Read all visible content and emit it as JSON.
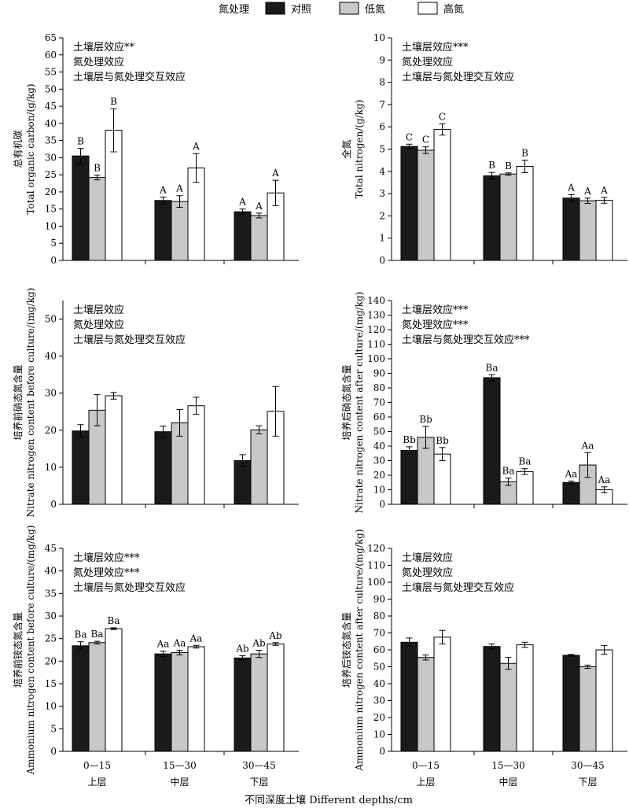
{
  "legend": {
    "title": "氮处理",
    "items": [
      {
        "label": "对照",
        "color": "#1a1a1a"
      },
      {
        "label": "低氮",
        "color": "#c8c8c8"
      },
      {
        "label": "高氮",
        "color": "#ffffff"
      }
    ]
  },
  "x_axis": {
    "depth_labels": [
      "0—15",
      "15—30",
      "30—45"
    ],
    "layer_labels": [
      "上层",
      "中层",
      "下层"
    ],
    "caption": "不同深度土壤 Different depths/cm"
  },
  "chart_data": [
    {
      "type": "bar",
      "ylabel_cn": "总有机碳",
      "ylabel_en": "Total organic carbon/(g/kg)",
      "ylim": [
        0,
        65
      ],
      "ystep": 5,
      "annotations": [
        "土壤层效应**",
        "氮处理效应",
        "土壤层与氮处理交互效应"
      ],
      "categories": [
        "0—15",
        "15—30",
        "30—45"
      ],
      "series": [
        {
          "name": "对照",
          "values": [
            30.5,
            17.5,
            14.2
          ],
          "errors": [
            2.2,
            1.0,
            0.8
          ]
        },
        {
          "name": "低氮",
          "values": [
            24.2,
            17.2,
            13.1
          ],
          "errors": [
            0.7,
            1.7,
            0.7
          ]
        },
        {
          "name": "高氮",
          "values": [
            38.0,
            27.0,
            19.7
          ],
          "errors": [
            6.3,
            4.2,
            3.7
          ]
        }
      ],
      "sig_labels": [
        [
          "B",
          "B",
          "B"
        ],
        [
          "A",
          "A",
          "A"
        ],
        [
          "A",
          "A",
          "A"
        ]
      ]
    },
    {
      "type": "bar",
      "ylabel_cn": "全氮",
      "ylabel_en": "Total nitrogen/(g/kg)",
      "ylim": [
        0,
        10
      ],
      "ystep": 1,
      "annotations": [
        "土壤层效应***",
        "氮处理效应",
        "土壤层与氮处理交互效应"
      ],
      "categories": [
        "0—15",
        "15—30",
        "30—45"
      ],
      "series": [
        {
          "name": "对照",
          "values": [
            5.12,
            3.8,
            2.8
          ],
          "errors": [
            0.1,
            0.15,
            0.15
          ]
        },
        {
          "name": "低氮",
          "values": [
            4.95,
            3.88,
            2.68
          ],
          "errors": [
            0.15,
            0.05,
            0.12
          ]
        },
        {
          "name": "高氮",
          "values": [
            5.88,
            4.22,
            2.7
          ],
          "errors": [
            0.25,
            0.28,
            0.13
          ]
        }
      ],
      "sig_labels": [
        [
          "C",
          "C",
          "C"
        ],
        [
          "B",
          "B",
          "B"
        ],
        [
          "A",
          "A",
          "A"
        ]
      ]
    },
    {
      "type": "bar",
      "ylabel_cn": "培养前硝态氮含量",
      "ylabel_en": "Nitrate nitrogen content before culture/(mg/kg)",
      "ylim": [
        0,
        55
      ],
      "ystep": 10,
      "annotations": [
        "土壤层效应",
        "氮处理效应",
        "土壤层与氮处理交互效应"
      ],
      "categories": [
        "0—15",
        "15—30",
        "30—45"
      ],
      "series": [
        {
          "name": "对照",
          "values": [
            19.8,
            19.6,
            11.8
          ],
          "errors": [
            1.7,
            1.5,
            1.6
          ]
        },
        {
          "name": "低氮",
          "values": [
            25.4,
            22.0,
            20.1
          ],
          "errors": [
            4.2,
            3.6,
            1.1
          ]
        },
        {
          "name": "高氮",
          "values": [
            29.3,
            26.6,
            25.1
          ],
          "errors": [
            0.9,
            2.3,
            6.7
          ]
        }
      ],
      "sig_labels": [
        [
          "",
          "",
          ""
        ],
        [
          "",
          "",
          ""
        ],
        [
          "",
          "",
          ""
        ]
      ]
    },
    {
      "type": "bar",
      "ylabel_cn": "培养后硝态氮含量",
      "ylabel_en": "Nitrate nitrogen content after culture/(mg/kg)",
      "ylim": [
        0,
        140
      ],
      "ystep": 10,
      "annotations": [
        "土壤层效应***",
        "氮处理效应***",
        "土壤层与氮处理交互效应***"
      ],
      "categories": [
        "0—15",
        "15—30",
        "30—45"
      ],
      "series": [
        {
          "name": "对照",
          "values": [
            37.0,
            87.0,
            15.0
          ],
          "errors": [
            2.5,
            2.0,
            1.0
          ]
        },
        {
          "name": "低氮",
          "values": [
            46.0,
            15.5,
            27.0
          ],
          "errors": [
            7.5,
            2.5,
            8.5
          ]
        },
        {
          "name": "高氮",
          "values": [
            34.5,
            22.5,
            10.0
          ],
          "errors": [
            4.5,
            2.0,
            2.0
          ]
        }
      ],
      "sig_labels": [
        [
          "Bb",
          "Bb",
          "Bb"
        ],
        [
          "Ba",
          "Ba",
          "Ba"
        ],
        [
          "Aa",
          "Aa",
          "Aa"
        ]
      ]
    },
    {
      "type": "bar",
      "ylabel_cn": "培养前铵态氮含量",
      "ylabel_en": "Ammonium nitrogen content before culture/(mg/kg)",
      "ylim": [
        0,
        45
      ],
      "ystep": 5,
      "annotations": [
        "土壤层效应***",
        "氮处理效应***",
        "土壤层与氮处理交互效应"
      ],
      "categories": [
        "0—15",
        "15—30",
        "30—45"
      ],
      "series": [
        {
          "name": "对照",
          "values": [
            23.4,
            21.6,
            20.7
          ],
          "errors": [
            0.9,
            0.6,
            0.5
          ]
        },
        {
          "name": "低氮",
          "values": [
            24.1,
            21.9,
            21.6
          ],
          "errors": [
            0.3,
            0.5,
            0.8
          ]
        },
        {
          "name": "高氮",
          "values": [
            27.2,
            23.2,
            23.8
          ],
          "errors": [
            0.2,
            0.3,
            0.3
          ]
        }
      ],
      "sig_labels": [
        [
          "Ba",
          "Ba",
          "Ba"
        ],
        [
          "Aa",
          "Aa",
          "Aa"
        ],
        [
          "Ab",
          "Ab",
          "Ab"
        ]
      ]
    },
    {
      "type": "bar",
      "ylabel_cn": "培养后铵态氮含量",
      "ylabel_en": "Ammonium nitrogen content after culture/(mg/kg)",
      "ylim": [
        0,
        120
      ],
      "ystep": 10,
      "annotations": [
        "土壤层效应",
        "氮处理效应",
        "土壤层与氮处理交互效应"
      ],
      "categories": [
        "0—15",
        "15—30",
        "30—45"
      ],
      "series": [
        {
          "name": "对照",
          "values": [
            64.5,
            62.0,
            56.8
          ],
          "errors": [
            2.5,
            1.5,
            0.5
          ]
        },
        {
          "name": "低氮",
          "values": [
            55.5,
            52.0,
            50.0
          ],
          "errors": [
            1.5,
            3.5,
            1.0
          ]
        },
        {
          "name": "高氮",
          "values": [
            67.5,
            63.0,
            60.0
          ],
          "errors": [
            4.0,
            1.5,
            2.5
          ]
        }
      ],
      "sig_labels": [
        [
          "",
          "",
          ""
        ],
        [
          "",
          "",
          ""
        ],
        [
          "",
          "",
          ""
        ]
      ]
    }
  ]
}
